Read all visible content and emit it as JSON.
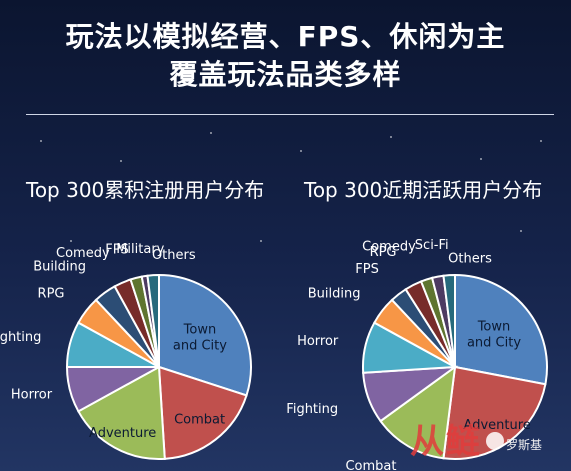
{
  "header": {
    "title_line1": "玩法以模拟经营、FPS、休闲为主",
    "title_line2": "覆盖玩法品类多样"
  },
  "watermark": {
    "name": "罗斯基"
  },
  "chart_data": [
    {
      "type": "pie",
      "title": "Top 300累积注册用户分布",
      "categories": [
        "Town and City",
        "Combat",
        "Adventure",
        "Horror",
        "Fighting",
        "RPG",
        "Building",
        "Comedy",
        "FPS",
        "Military",
        "Others"
      ],
      "values": [
        30,
        19,
        18,
        8,
        8,
        5,
        4,
        3,
        2,
        1,
        2
      ],
      "colors": [
        "#4f81bd",
        "#c0504d",
        "#9bbb59",
        "#8064a2",
        "#4bacc6",
        "#f79646",
        "#2c4d75",
        "#772c2a",
        "#5f7530",
        "#4d3b62",
        "#276a7c"
      ],
      "start_angle_deg": 0,
      "direction": "clockwise"
    },
    {
      "type": "pie",
      "title": "Top 300近期活跃用户分布",
      "categories": [
        "Town and City",
        "Adventure",
        "Combat",
        "Fighting",
        "Horror",
        "Building",
        "FPS",
        "RPG",
        "Comedy",
        "Sci-Fi",
        "Others"
      ],
      "values": [
        28,
        24,
        13,
        9,
        9,
        5,
        3,
        3,
        2,
        2,
        2
      ],
      "colors": [
        "#4f81bd",
        "#c0504d",
        "#9bbb59",
        "#8064a2",
        "#4bacc6",
        "#f79646",
        "#2c4d75",
        "#772c2a",
        "#5f7530",
        "#4d3b62",
        "#276a7c"
      ],
      "start_angle_deg": 0,
      "direction": "clockwise"
    }
  ]
}
